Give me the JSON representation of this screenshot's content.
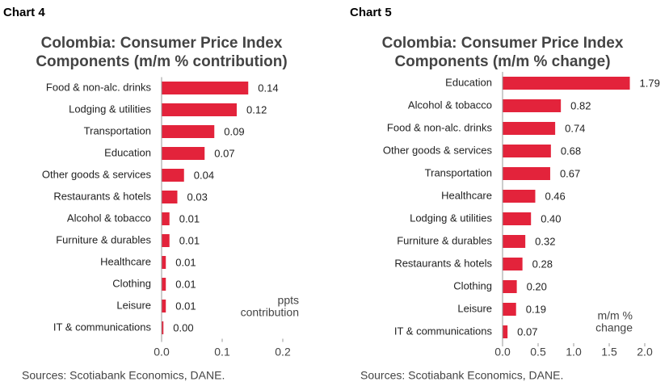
{
  "chart_data": [
    {
      "type": "bar",
      "orientation": "horizontal",
      "label": "Chart 4",
      "title": [
        "Colombia: Consumer Price Index",
        "Components (m/m % contribution)"
      ],
      "categories": [
        "Food & non-alc. drinks",
        "Lodging & utilities",
        "Transportation",
        "Education",
        "Other goods & services",
        "Restaurants & hotels",
        "Alcohol & tobacco",
        "Furniture & durables",
        "Healthcare",
        "Clothing",
        "Leisure",
        "IT & communications"
      ],
      "values": [
        0.143,
        0.124,
        0.087,
        0.071,
        0.037,
        0.026,
        0.013,
        0.013,
        0.007,
        0.007,
        0.007,
        0.003
      ],
      "value_labels": [
        "0.14",
        "0.12",
        "0.09",
        "0.07",
        "0.04",
        "0.03",
        "0.01",
        "0.01",
        "0.01",
        "0.01",
        "0.01",
        "0.00"
      ],
      "color": "#e3233b",
      "xlim": [
        0,
        0.2
      ],
      "xticks": [
        {
          "value": 0,
          "label": "0.0"
        },
        0.1,
        0.2
      ],
      "annotation": [
        "ppts",
        "contribution"
      ],
      "source": "Sources: Scotiabank Economics, DANE."
    },
    {
      "type": "bar",
      "orientation": "horizontal",
      "label": "Chart 5",
      "title": [
        "Colombia: Consumer Price Index",
        "Components (m/m % change)"
      ],
      "categories": [
        "Education",
        "Alcohol & tobacco",
        "Food & non-alc. drinks",
        "Other goods & services",
        "Transportation",
        "Healthcare",
        "Lodging & utilities",
        "Furniture & durables",
        "Restaurants & hotels",
        "Clothing",
        "Leisure",
        "IT & communications"
      ],
      "values": [
        1.79,
        0.82,
        0.74,
        0.68,
        0.67,
        0.46,
        0.4,
        0.32,
        0.28,
        0.2,
        0.19,
        0.07
      ],
      "value_labels": [
        "1.79",
        "0.82",
        "0.74",
        "0.68",
        "0.67",
        "0.46",
        "0.40",
        "0.32",
        "0.28",
        "0.20",
        "0.19",
        "0.07"
      ],
      "color": "#e3233b",
      "xlim": [
        0,
        2
      ],
      "xticks": [
        {
          "value": 0,
          "label": "0.0"
        },
        0.5,
        {
          "value": 1,
          "label": "1.0"
        },
        1.5,
        {
          "value": 2,
          "label": "2.0"
        }
      ],
      "annotation": [
        "m/m %",
        "change"
      ],
      "source": "Sources: Scotiabank Economics, DANE."
    }
  ]
}
